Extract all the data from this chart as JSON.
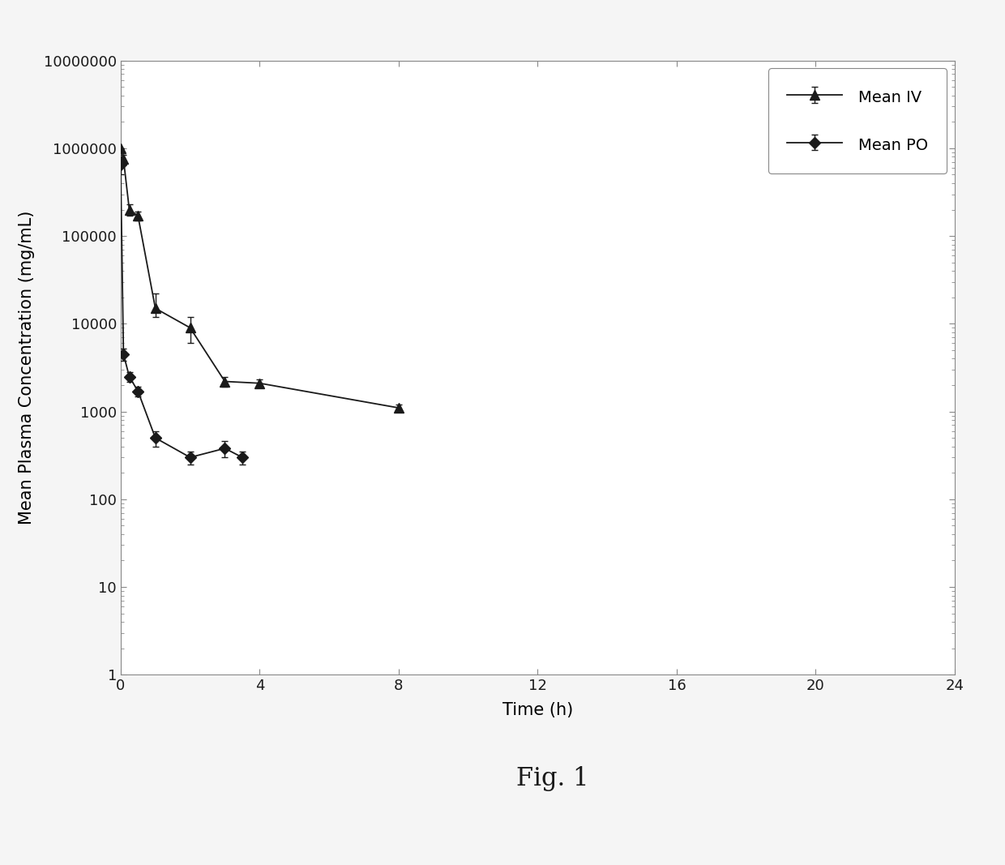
{
  "iv_x": [
    0,
    0.083,
    0.25,
    0.5,
    1,
    2,
    3,
    4,
    8
  ],
  "iv_y": [
    1000000,
    750000,
    200000,
    170000,
    15000,
    9000,
    2200,
    2100,
    1100
  ],
  "iv_yerr_low": [
    0,
    100000,
    30000,
    20000,
    3000,
    3000,
    300,
    200,
    100
  ],
  "iv_yerr_high": [
    0,
    100000,
    30000,
    20000,
    7000,
    3000,
    300,
    200,
    100
  ],
  "po_x": [
    0,
    0.083,
    0.25,
    0.5,
    1,
    2,
    3,
    3.5
  ],
  "po_y": [
    650000,
    4500,
    2500,
    1700,
    500,
    300,
    380,
    300
  ],
  "po_yerr_low": [
    150000,
    700,
    300,
    200,
    100,
    50,
    80,
    50
  ],
  "po_yerr_high": [
    150000,
    700,
    300,
    200,
    100,
    50,
    80,
    50
  ],
  "xlabel": "Time (h)",
  "ylabel": "Mean Plasma Concentration (mg/mL)",
  "legend_iv": "Mean IV",
  "legend_po": "Mean PO",
  "fig_label": "Fig. 1",
  "xlim": [
    0,
    24
  ],
  "ylim_log": [
    1,
    10000000
  ],
  "xticks": [
    0,
    4,
    8,
    12,
    16,
    20,
    24
  ],
  "ytick_vals": [
    1,
    10,
    100,
    1000,
    10000,
    100000,
    1000000,
    10000000
  ],
  "ytick_labels": [
    "1",
    "10",
    "100",
    "1000",
    "10000",
    "100000",
    "1000000",
    "10000000"
  ],
  "line_color": "#1a1a1a",
  "bg_color": "#f5f5f5",
  "plot_bg_color": "#ffffff"
}
